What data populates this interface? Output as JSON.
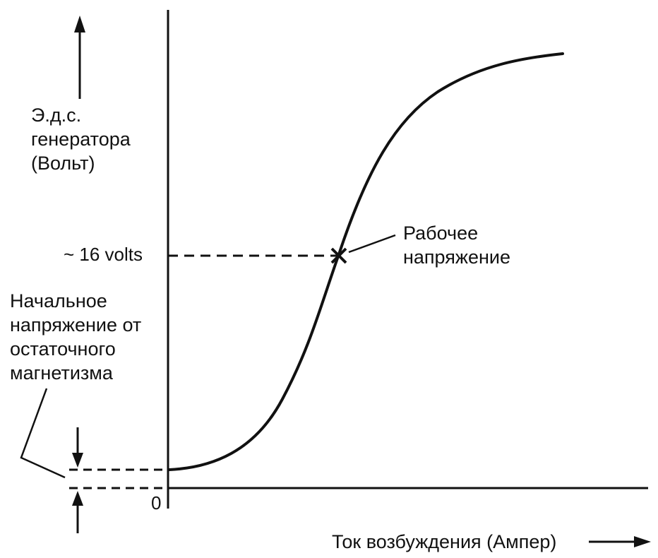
{
  "chart_data": {
    "type": "line",
    "ylabel_lines": [
      "Э.д.с.",
      "генератора",
      "(Вольт)"
    ],
    "xlabel": "Ток возбуждения (Ампер)",
    "origin_label": "0",
    "operating_point": {
      "value_label": "~ 16 volts",
      "annotation_lines": [
        "Рабочее",
        "напряжение"
      ]
    },
    "residual": {
      "annotation_lines": [
        "Начальное",
        "напряжение от",
        "остаточного",
        "магнетизма"
      ]
    },
    "grid": false,
    "colors": {
      "ink": "#111111",
      "background": "#ffffff"
    }
  }
}
